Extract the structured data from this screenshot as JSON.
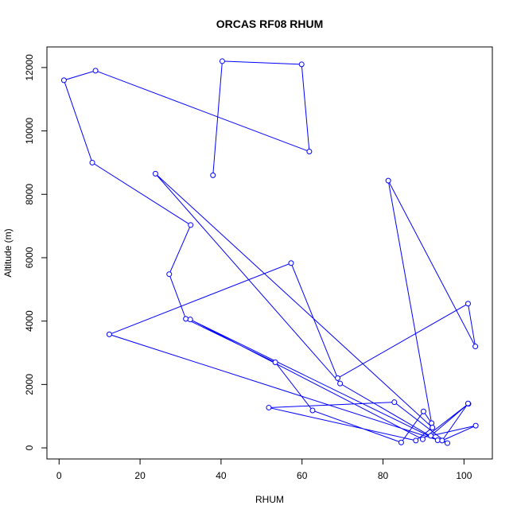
{
  "chart_data": {
    "type": "line",
    "title": "ORCAS RF08 RHUM",
    "xlabel": "RHUM",
    "ylabel": "Altitude (m)",
    "xlim": [
      -3,
      107
    ],
    "ylim": [
      -350,
      12650
    ],
    "x_ticks": [
      0,
      20,
      40,
      60,
      80,
      100
    ],
    "y_ticks": [
      0,
      2000,
      4000,
      6000,
      8000,
      10000,
      12000
    ],
    "x_tick_labels": [
      "0",
      "20",
      "40",
      "60",
      "80",
      "100"
    ],
    "y_tick_labels": [
      "0",
      "2000",
      "4000",
      "6000",
      "8000",
      "10000",
      "12000"
    ],
    "grid": false,
    "line_color": "#0000ff",
    "marker": "open-circle",
    "series": [
      {
        "points": [
          [
            38,
            8600
          ],
          [
            40.3,
            12200
          ],
          [
            59.9,
            12100
          ],
          [
            61.8,
            9350
          ],
          [
            9,
            11900
          ],
          [
            1.2,
            11600
          ],
          [
            8.2,
            9000
          ],
          [
            32.5,
            7030
          ],
          [
            27.2,
            5480
          ],
          [
            31.3,
            4070
          ],
          [
            53.4,
            2700
          ],
          [
            62.6,
            1180
          ],
          [
            84.5,
            170
          ],
          [
            90,
            1150
          ],
          [
            92,
            780
          ],
          [
            81.3,
            8430
          ],
          [
            102.8,
            3200
          ],
          [
            101,
            4550
          ],
          [
            68.8,
            2200
          ],
          [
            57.3,
            5830
          ],
          [
            12.4,
            3580
          ],
          [
            95.9,
            150
          ],
          [
            82.8,
            1440
          ],
          [
            51.8,
            1270
          ],
          [
            88.1,
            230
          ],
          [
            92.2,
            640
          ],
          [
            23.8,
            8650
          ],
          [
            69.4,
            2030
          ],
          [
            93.5,
            240
          ],
          [
            32.4,
            4050
          ],
          [
            89.8,
            270
          ],
          [
            101.1,
            1390
          ],
          [
            91.8,
            380
          ],
          [
            102.9,
            700
          ],
          [
            94.6,
            230
          ],
          [
            101,
            1400
          ]
        ]
      }
    ]
  }
}
